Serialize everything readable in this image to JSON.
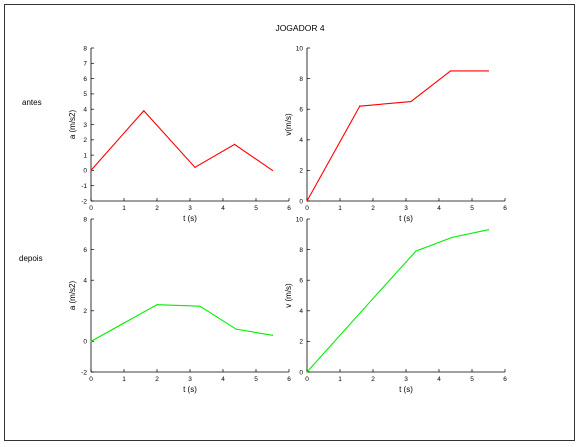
{
  "title": "JOGADOR 4",
  "row_labels": [
    "antes",
    "depois"
  ],
  "chart_data": [
    {
      "type": "line",
      "title": "",
      "xlabel": "t (s)",
      "ylabel": "a (m/s2)",
      "xlim": [
        0,
        6
      ],
      "ylim": [
        -2,
        8
      ],
      "xticks": [
        0,
        1,
        2,
        3,
        4,
        5,
        6
      ],
      "yticks": [
        -2,
        -1,
        0,
        1,
        2,
        3,
        4,
        5,
        6,
        7,
        8
      ],
      "grid": false,
      "series": [
        {
          "color": "#ff0000",
          "x": [
            0,
            1.6,
            3.15,
            4.35,
            5.5
          ],
          "y": [
            0,
            3.9,
            0.2,
            1.7,
            0
          ]
        }
      ]
    },
    {
      "type": "line",
      "title": "",
      "xlabel": "t (s)",
      "ylabel": "v(m/s)",
      "xlim": [
        0,
        6
      ],
      "ylim": [
        0,
        10
      ],
      "xticks": [
        0,
        1,
        2,
        3,
        4,
        5,
        6
      ],
      "yticks": [
        0,
        2,
        4,
        6,
        8,
        10
      ],
      "grid": false,
      "series": [
        {
          "color": "#ff0000",
          "x": [
            0,
            1.6,
            3.15,
            4.35,
            5.5
          ],
          "y": [
            0,
            6.2,
            6.5,
            8.5,
            8.5
          ]
        }
      ]
    },
    {
      "type": "line",
      "title": "",
      "xlabel": "t (s)",
      "ylabel": "a (m/s2)",
      "xlim": [
        0,
        6
      ],
      "ylim": [
        -2,
        8
      ],
      "xticks": [
        0,
        1,
        2,
        3,
        4,
        5,
        6
      ],
      "yticks": [
        -2,
        0,
        2,
        4,
        6,
        8
      ],
      "grid": false,
      "series": [
        {
          "color": "#00ee00",
          "x": [
            0,
            2,
            3.3,
            4.4,
            5.5
          ],
          "y": [
            0,
            2.4,
            2.3,
            0.8,
            0.4
          ]
        }
      ]
    },
    {
      "type": "line",
      "title": "",
      "xlabel": "t (s)",
      "ylabel": "v (m/s)",
      "xlim": [
        0,
        6
      ],
      "ylim": [
        0,
        10
      ],
      "xticks": [
        0,
        1,
        2,
        3,
        4,
        5,
        6
      ],
      "yticks": [
        0,
        2,
        4,
        6,
        8,
        10
      ],
      "grid": false,
      "series": [
        {
          "color": "#00ee00",
          "x": [
            0,
            2,
            3.3,
            4.4,
            5.5
          ],
          "y": [
            0,
            4.8,
            7.9,
            8.8,
            9.3
          ]
        }
      ]
    }
  ]
}
